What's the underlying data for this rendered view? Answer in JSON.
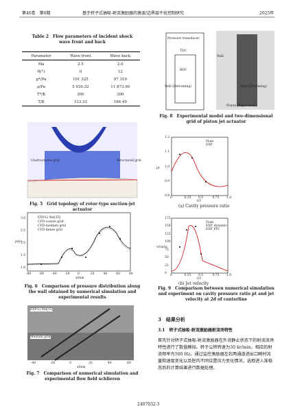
{
  "header": {
    "volume": "第46卷　第6期",
    "title": "基于转子式抽吸-射流激励器的激波/边界层干扰控制研究",
    "year": "2025年"
  },
  "table": {
    "caption": "Table 2　Flow parameters of incident shock wave front and back",
    "columns": [
      "Parameter",
      "Wave front",
      "Wave back"
    ],
    "rows": [
      [
        "Ma",
        "2.5",
        "2.0"
      ],
      [
        "θ(°)",
        "0",
        "12"
      ],
      [
        "p*/Pa",
        "101 325",
        "97 319"
      ],
      [
        "ρ/Pa",
        "5 930.32",
        "11 873.90"
      ],
      [
        "T*/K",
        "300",
        "300"
      ],
      [
        "T/K",
        "133.33",
        "166.49"
      ]
    ]
  },
  "fig5": {
    "labels": [
      "Unstructured grid",
      "Structured grid"
    ],
    "caption": "Fig. 5　Grid topology of rotor-type suction-jet actuator"
  },
  "fig6": {
    "legend": [
      "EXP-Li Xin[15]",
      "CFD-coarse grid",
      "CFD-medium grid",
      "CFD-dense grid"
    ],
    "xlabel": "x/mm",
    "ylabel": "p/p∞",
    "xticks": [
      "-80",
      "-60",
      "-40",
      "-20",
      "0",
      "20",
      "40",
      "60",
      "80"
    ],
    "yticks": [
      "1.0",
      "1.5",
      "2.0",
      "2.5",
      "3.0"
    ],
    "caption": "Fig. 6　Comparison of pressure distribution along the wall obtained by numerical simulation and experimental results"
  },
  "fig7": {
    "labels": [
      "EXP-Li Xin[15]",
      "Medium grid"
    ],
    "xlabel": "x/mm",
    "xticks": [
      "-40",
      "-20",
      "0",
      "20",
      "40",
      "60"
    ],
    "caption": "Fig. 7　Comparison of numerical simulation and experimental flow field schlieren"
  },
  "fig8": {
    "labels": [
      "Pressure transducer",
      "TDC",
      "BDC",
      "Wall (Deforming)",
      "Axis (Deforming)",
      "Piston (Rigid body)",
      "Wall"
    ],
    "caption": "Fig. 8　Experimental model and two-dimensional grid of piston jet actuator"
  },
  "fig9": {
    "a": {
      "legend": [
        "Num",
        "EXP"
      ],
      "xlabel": "t/T",
      "ylabel": "pt",
      "yticks": [
        "1.2",
        "1.1",
        "1.0",
        "0.9",
        "0.8"
      ],
      "xticks": [
        "0",
        "0.25",
        "0.5",
        "0.75",
        "1.0"
      ],
      "sub": "(a) Cavity pressure ratio"
    },
    "b": {
      "legend": [
        "Num",
        "EXP_dynamic",
        "EXP_PIV"
      ],
      "xlabel": "t/T",
      "ylabel": "v/(m/s)",
      "yticks": [
        "175",
        "150",
        "125",
        "100",
        "75",
        "50",
        "25",
        "0"
      ],
      "xticks": [
        "0",
        "0.25",
        "0.5",
        "0.75",
        "1.0"
      ],
      "sub": "(b) Jet velocity"
    },
    "caption": "Fig. 9　Comparison between numerical simulation and experiment on cavity pressure ratio pt and jet velocity at 2d of centerline"
  },
  "section": {
    "heading": "3　结果分析",
    "subheading": "3.1　转子式抽吸-射流激励器射流场特性",
    "paragraph": "首先针对转子式抽吸-射流激励器在外流静止状态下的射流流场特性进行了数值模拟。转子公转转速为30 kr/min，相应的射流频率为500 Hz。通过监控激励器左右两通道进出口瞬时流量和速度变化以及腔内不同位置压力变化情况，选取进入准稳态后的计算结果进行数据处理。"
  },
  "footer": "2407032-3"
}
